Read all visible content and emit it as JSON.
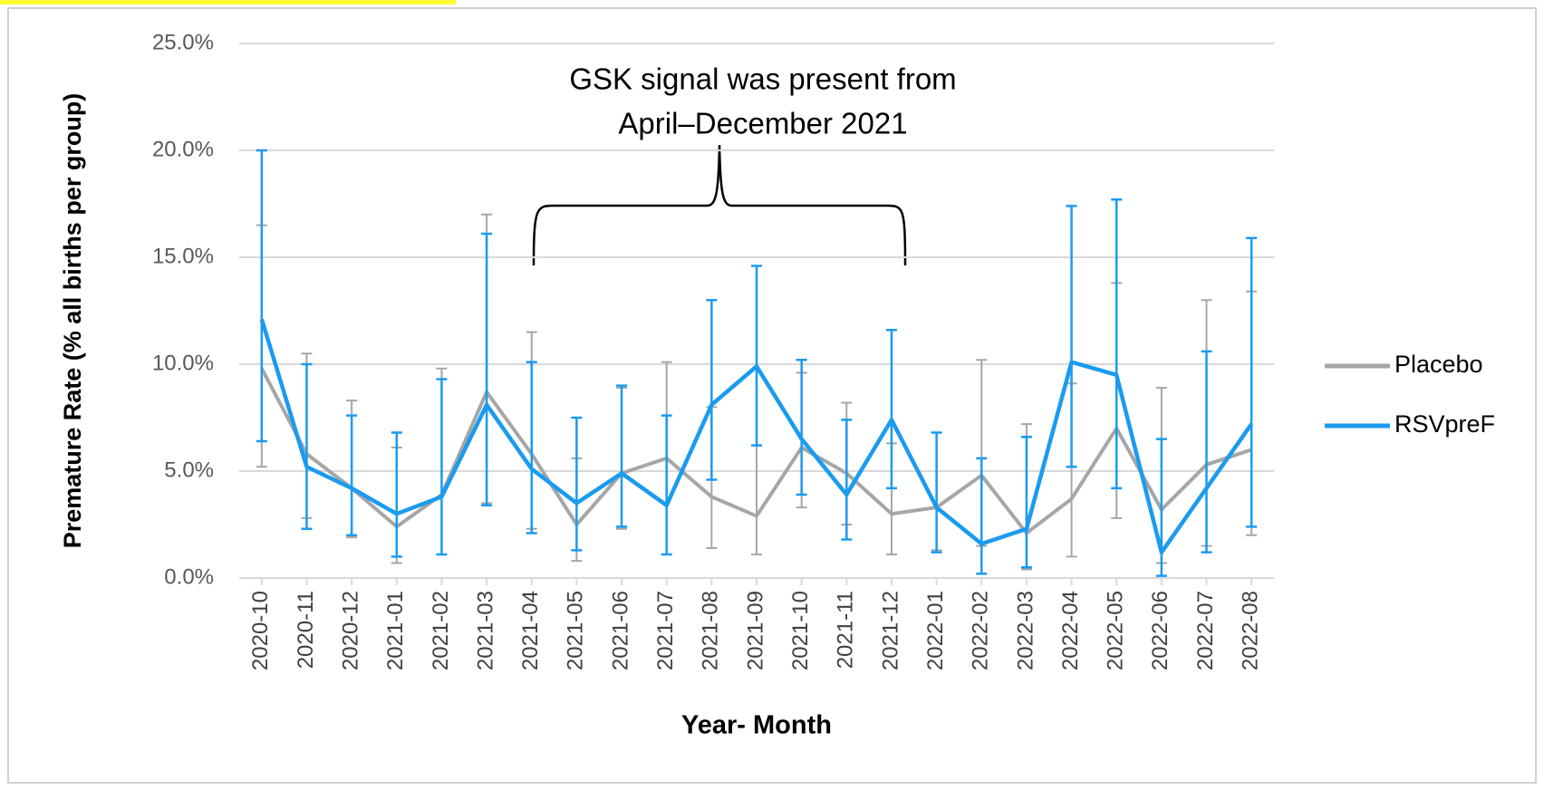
{
  "chart_data": {
    "type": "line",
    "annotation": [
      "GSK signal was present from",
      "April–December 2021"
    ],
    "x_label": "Year- Month",
    "y_label": "Premature Rate (% all births per group)",
    "categories": [
      "2020-10",
      "2020-11",
      "2020-12",
      "2021-01",
      "2021-02",
      "2021-03",
      "2021-04",
      "2021-05",
      "2021-06",
      "2021-07",
      "2021-08",
      "2021-09",
      "2021-10",
      "2021-11",
      "2021-12",
      "2022-01",
      "2022-02",
      "2022-03",
      "2022-04",
      "2022-05",
      "2022-06",
      "2022-07",
      "2022-08"
    ],
    "series": [
      {
        "name": "Placebo",
        "color": "#a6a6a6",
        "values": [
          9.8,
          5.8,
          4.2,
          2.4,
          3.9,
          8.7,
          5.8,
          2.5,
          4.9,
          5.6,
          3.8,
          2.9,
          6.1,
          4.9,
          3.0,
          3.3,
          4.8,
          2.1,
          3.7,
          7.0,
          3.2,
          5.3,
          6.0
        ],
        "lower": [
          5.2,
          2.8,
          1.9,
          0.7,
          1.1,
          3.5,
          2.3,
          0.8,
          2.3,
          1.1,
          1.4,
          1.1,
          3.3,
          2.5,
          1.1,
          1.3,
          1.5,
          0.4,
          1.0,
          2.8,
          0.7,
          1.5,
          2.0
        ],
        "upper": [
          16.5,
          10.5,
          8.3,
          6.1,
          9.8,
          17.0,
          11.5,
          5.6,
          8.9,
          10.1,
          8.0,
          6.2,
          9.6,
          8.2,
          6.3,
          6.8,
          10.2,
          7.2,
          9.1,
          13.8,
          8.9,
          13.0,
          13.4
        ]
      },
      {
        "name": "RSVpreF",
        "color": "#1a9bf0",
        "values": [
          12.1,
          5.2,
          4.2,
          3.0,
          3.8,
          8.1,
          5.1,
          3.5,
          4.9,
          3.4,
          8.1,
          9.9,
          6.5,
          3.9,
          7.4,
          3.3,
          1.6,
          2.3,
          10.1,
          9.5,
          1.2,
          4.2,
          7.2
        ],
        "lower": [
          6.4,
          2.3,
          2.0,
          1.0,
          1.1,
          3.4,
          2.1,
          1.3,
          2.4,
          1.1,
          4.6,
          6.2,
          3.9,
          1.8,
          4.2,
          1.2,
          0.2,
          0.5,
          5.2,
          4.2,
          0.1,
          1.2,
          2.4
        ],
        "upper": [
          20.0,
          10.0,
          7.6,
          6.8,
          9.3,
          16.1,
          10.1,
          7.5,
          9.0,
          7.6,
          13.0,
          14.6,
          10.2,
          7.4,
          11.6,
          6.8,
          5.6,
          6.6,
          17.4,
          17.7,
          6.5,
          10.6,
          15.9
        ]
      }
    ],
    "ylim": [
      0,
      25
    ],
    "yticks": [
      {
        "value": 0,
        "label": "0.0%"
      },
      {
        "value": 5,
        "label": "5.0%"
      },
      {
        "value": 10,
        "label": "10.0%"
      },
      {
        "value": 15,
        "label": "15.0%"
      },
      {
        "value": 20,
        "label": "20.0%"
      },
      {
        "value": 25,
        "label": "25.0%"
      }
    ],
    "grid": true,
    "legend": "right"
  }
}
